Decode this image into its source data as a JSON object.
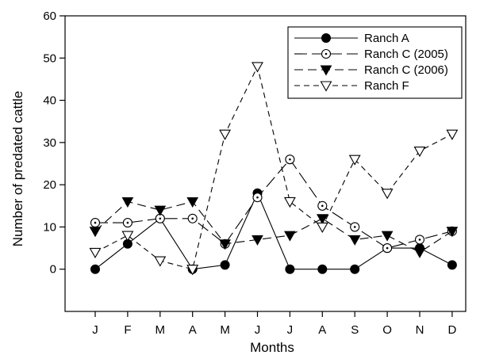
{
  "chart_data": {
    "type": "line",
    "xlabel": "Months",
    "ylabel": "Number of predated cattle",
    "categories": [
      "J",
      "F",
      "M",
      "A",
      "M",
      "J",
      "J",
      "A",
      "S",
      "O",
      "N",
      "D"
    ],
    "ylim": [
      -10,
      60
    ],
    "yticks": [
      0,
      10,
      20,
      30,
      40,
      50,
      60
    ],
    "grid": false,
    "legend_position": "top-right",
    "series": [
      {
        "name": "Ranch A",
        "marker": "filled-circle",
        "line_style": "solid",
        "values": [
          0,
          6,
          12,
          0,
          1,
          18,
          0,
          0,
          0,
          5,
          5,
          1
        ]
      },
      {
        "name": "Ranch C (2005)",
        "marker": "open-circle-dot",
        "line_style": "long-dash",
        "values": [
          11,
          11,
          12,
          12,
          6,
          17,
          26,
          15,
          10,
          5,
          7,
          9
        ]
      },
      {
        "name": "Ranch C (2006)",
        "marker": "filled-triangle-down",
        "line_style": "dash",
        "values": [
          9,
          16,
          14,
          16,
          6,
          7,
          8,
          12,
          7,
          8,
          4,
          9
        ]
      },
      {
        "name": "Ranch F",
        "marker": "open-triangle-down",
        "line_style": "short-dash",
        "values": [
          4,
          8,
          2,
          0,
          32,
          48,
          16,
          10,
          26,
          18,
          28,
          32
        ]
      }
    ]
  }
}
